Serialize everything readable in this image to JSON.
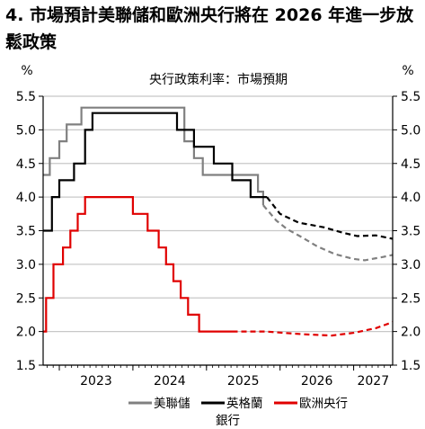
{
  "title": "4. 市場預計美聯儲和歐洲央行將在 2026 年進一步放鬆政策",
  "chart_data": {
    "type": "line",
    "subtitle": "央行政策利率：市場預期",
    "y_unit_left": "%",
    "y_unit_right": "%",
    "ylim": [
      1.5,
      5.5
    ],
    "yticks": [
      1.5,
      2.0,
      2.5,
      3.0,
      3.5,
      4.0,
      4.5,
      5.0,
      5.5
    ],
    "ytick_labels": [
      "1.5",
      "2.0",
      "2.5",
      "3.0",
      "3.5",
      "4.0",
      "4.5",
      "5.0",
      "5.5"
    ],
    "xlim": [
      2022.78,
      2027.53
    ],
    "x_year_boundaries": [
      2023,
      2024,
      2025,
      2026,
      2027
    ],
    "x_tick_labels": [
      {
        "x": 2023.5,
        "label": "2023"
      },
      {
        "x": 2024.5,
        "label": "2024"
      },
      {
        "x": 2025.5,
        "label": "2025"
      },
      {
        "x": 2026.5,
        "label": "2026"
      },
      {
        "x": 2027.5,
        "label": "2027"
      }
    ],
    "grid": true,
    "legend_position": "bottom",
    "series": [
      {
        "name": "美聯儲",
        "color": "#808080",
        "actual": [
          [
            2022.78,
            4.33
          ],
          [
            2022.87,
            4.33
          ],
          [
            2022.87,
            4.58
          ],
          [
            2023.0,
            4.58
          ],
          [
            2023.0,
            4.83
          ],
          [
            2023.1,
            4.83
          ],
          [
            2023.1,
            5.08
          ],
          [
            2023.3,
            5.08
          ],
          [
            2023.3,
            5.33
          ],
          [
            2024.7,
            5.33
          ],
          [
            2024.7,
            4.83
          ],
          [
            2024.83,
            4.83
          ],
          [
            2024.83,
            4.58
          ],
          [
            2024.95,
            4.58
          ],
          [
            2024.95,
            4.33
          ],
          [
            2025.7,
            4.33
          ],
          [
            2025.7,
            4.08
          ],
          [
            2025.77,
            4.08
          ],
          [
            2025.77,
            3.88
          ]
        ],
        "forecast": [
          [
            2025.77,
            3.88
          ],
          [
            2025.95,
            3.65
          ],
          [
            2026.1,
            3.52
          ],
          [
            2026.3,
            3.4
          ],
          [
            2026.5,
            3.27
          ],
          [
            2026.75,
            3.15
          ],
          [
            2027.0,
            3.08
          ],
          [
            2027.15,
            3.06
          ],
          [
            2027.4,
            3.11
          ],
          [
            2027.53,
            3.14
          ]
        ]
      },
      {
        "name": "英格蘭銀行",
        "color": "#000000",
        "actual": [
          [
            2022.78,
            3.5
          ],
          [
            2022.9,
            3.5
          ],
          [
            2022.9,
            4.0
          ],
          [
            2023.0,
            4.0
          ],
          [
            2023.0,
            4.25
          ],
          [
            2023.2,
            4.25
          ],
          [
            2023.2,
            4.5
          ],
          [
            2023.35,
            4.5
          ],
          [
            2023.35,
            5.0
          ],
          [
            2023.45,
            5.0
          ],
          [
            2023.45,
            5.25
          ],
          [
            2024.6,
            5.25
          ],
          [
            2024.6,
            5.0
          ],
          [
            2024.83,
            5.0
          ],
          [
            2024.83,
            4.75
          ],
          [
            2025.1,
            4.75
          ],
          [
            2025.1,
            4.5
          ],
          [
            2025.35,
            4.5
          ],
          [
            2025.35,
            4.25
          ],
          [
            2025.6,
            4.25
          ],
          [
            2025.6,
            4.0
          ],
          [
            2025.82,
            4.0
          ]
        ],
        "forecast": [
          [
            2025.82,
            4.0
          ],
          [
            2026.0,
            3.75
          ],
          [
            2026.25,
            3.62
          ],
          [
            2026.6,
            3.55
          ],
          [
            2026.85,
            3.47
          ],
          [
            2027.05,
            3.42
          ],
          [
            2027.3,
            3.43
          ],
          [
            2027.53,
            3.38
          ]
        ]
      },
      {
        "name": "歐洲央行",
        "color": "#e00000",
        "actual": [
          [
            2022.78,
            2.0
          ],
          [
            2022.82,
            2.0
          ],
          [
            2022.82,
            2.5
          ],
          [
            2022.92,
            2.5
          ],
          [
            2022.92,
            3.0
          ],
          [
            2023.05,
            3.0
          ],
          [
            2023.05,
            3.25
          ],
          [
            2023.15,
            3.25
          ],
          [
            2023.15,
            3.5
          ],
          [
            2023.25,
            3.5
          ],
          [
            2023.25,
            3.75
          ],
          [
            2023.35,
            3.75
          ],
          [
            2023.35,
            4.0
          ],
          [
            2024.0,
            4.0
          ],
          [
            2024.0,
            3.75
          ],
          [
            2024.2,
            3.75
          ],
          [
            2024.2,
            3.5
          ],
          [
            2024.35,
            3.5
          ],
          [
            2024.35,
            3.25
          ],
          [
            2024.45,
            3.25
          ],
          [
            2024.45,
            3.0
          ],
          [
            2024.55,
            3.0
          ],
          [
            2024.55,
            2.75
          ],
          [
            2024.65,
            2.75
          ],
          [
            2024.65,
            2.5
          ],
          [
            2024.75,
            2.5
          ],
          [
            2024.75,
            2.25
          ],
          [
            2024.9,
            2.25
          ],
          [
            2024.9,
            2.0
          ],
          [
            2025.35,
            2.0
          ]
        ],
        "forecast": [
          [
            2025.35,
            2.0
          ],
          [
            2025.8,
            2.0
          ],
          [
            2026.3,
            1.96
          ],
          [
            2026.7,
            1.94
          ],
          [
            2027.0,
            1.98
          ],
          [
            2027.3,
            2.05
          ],
          [
            2027.53,
            2.14
          ]
        ]
      }
    ],
    "legend": [
      {
        "label": "美聯儲"
      },
      {
        "label": "英格蘭",
        "label2": "銀行"
      },
      {
        "label": "歐洲央行"
      }
    ]
  }
}
